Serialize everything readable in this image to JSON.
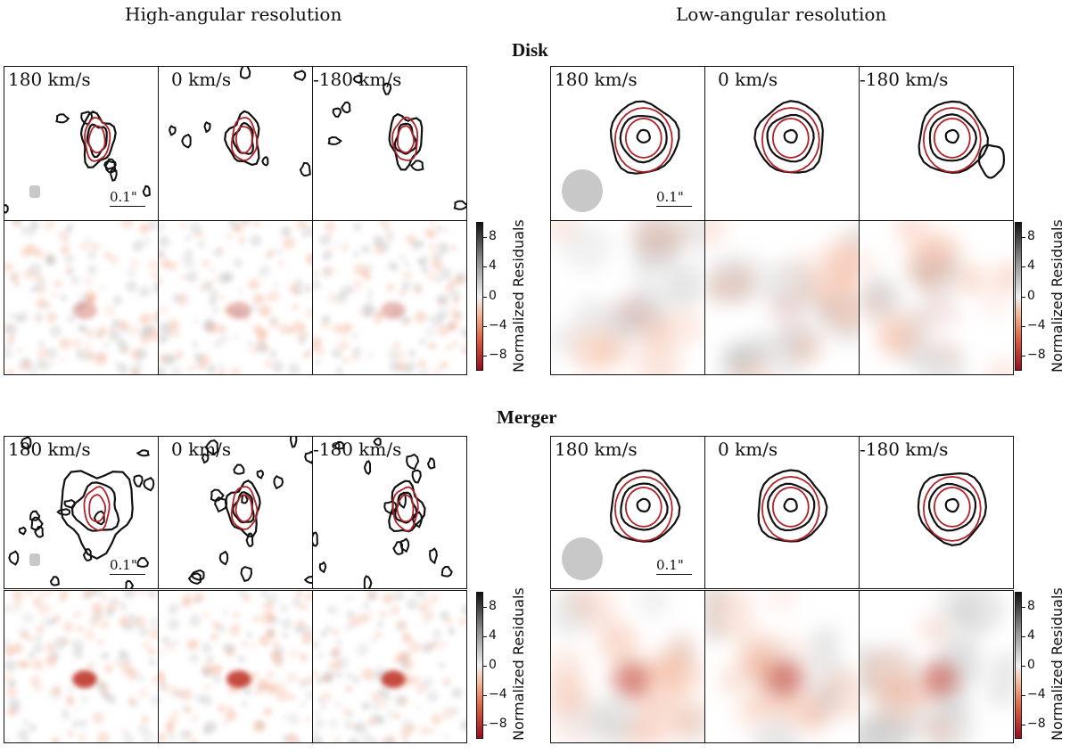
{
  "column_titles": [
    "High-angular resolution",
    "Low-angular resolution"
  ],
  "row_titles": [
    "Disk",
    "Merger"
  ],
  "velocity_labels": [
    "180 km/s",
    "0 km/s",
    "-180 km/s"
  ],
  "scale_label": "0.1\"",
  "colorbar": {
    "label": "Normalized Residuals",
    "ticks": [
      "8",
      "4",
      "0",
      "−4",
      "−8"
    ]
  },
  "colors": {
    "data_contour": "#111111",
    "model_contour": "#b0222a",
    "beam": "#c8c8c8",
    "positive_residual": "#333333",
    "negative_residual": "#c0392b"
  }
}
